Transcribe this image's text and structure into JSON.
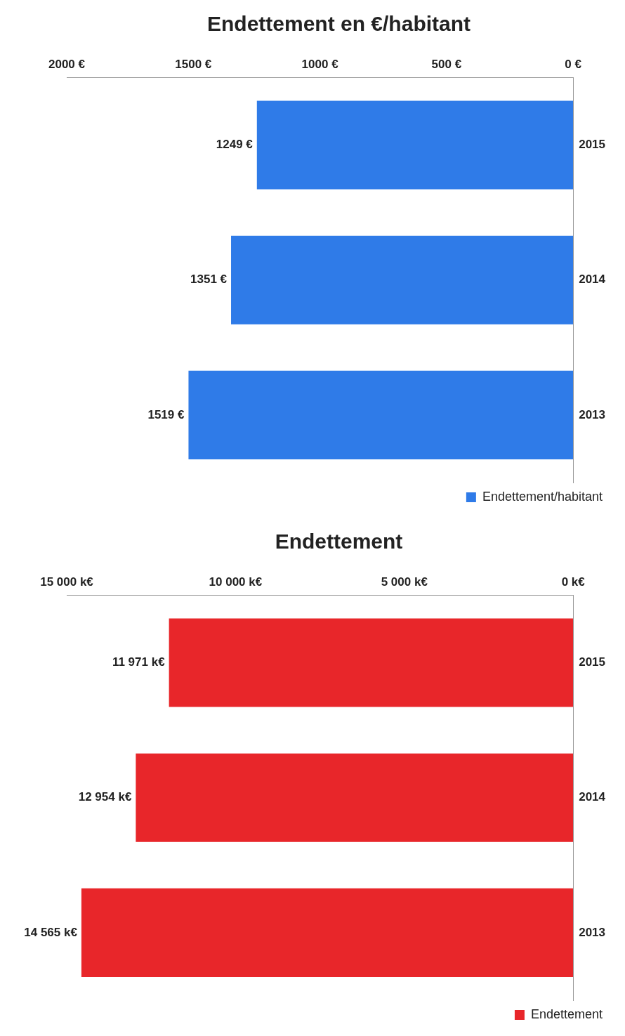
{
  "chart_data": [
    {
      "type": "bar",
      "title": "Endettement en €/habitant",
      "orientation": "horizontal",
      "categories": [
        "2015",
        "2014",
        "2013"
      ],
      "series": [
        {
          "name": "Endettement/habitant",
          "color": "#2f7be8",
          "values": [
            1249,
            1351,
            1519
          ],
          "value_labels": [
            "1249 €",
            "1351 €",
            "1519 €"
          ]
        }
      ],
      "xlim": [
        2000,
        0
      ],
      "xticks": [
        {
          "value": 2000,
          "label": "2000 €"
        },
        {
          "value": 1500,
          "label": "1500 €"
        },
        {
          "value": 1000,
          "label": "1000 €"
        },
        {
          "value": 500,
          "label": "500 €"
        },
        {
          "value": 0,
          "label": "0 €"
        }
      ],
      "legend": "bottom right"
    },
    {
      "type": "bar",
      "title": "Endettement",
      "orientation": "horizontal",
      "categories": [
        "2015",
        "2014",
        "2013"
      ],
      "series": [
        {
          "name": "Endettement",
          "color": "#e8262a",
          "values": [
            11971,
            12954,
            14565
          ],
          "value_labels": [
            "11 971 k€",
            "12 954 k€",
            "14 565 k€"
          ]
        }
      ],
      "xlim": [
        15000,
        0
      ],
      "xticks": [
        {
          "value": 15000,
          "label": "15 000 k€"
        },
        {
          "value": 10000,
          "label": "10 000 k€"
        },
        {
          "value": 5000,
          "label": "5 000 k€"
        },
        {
          "value": 0,
          "label": "0 k€"
        }
      ],
      "legend": "bottom right"
    }
  ]
}
